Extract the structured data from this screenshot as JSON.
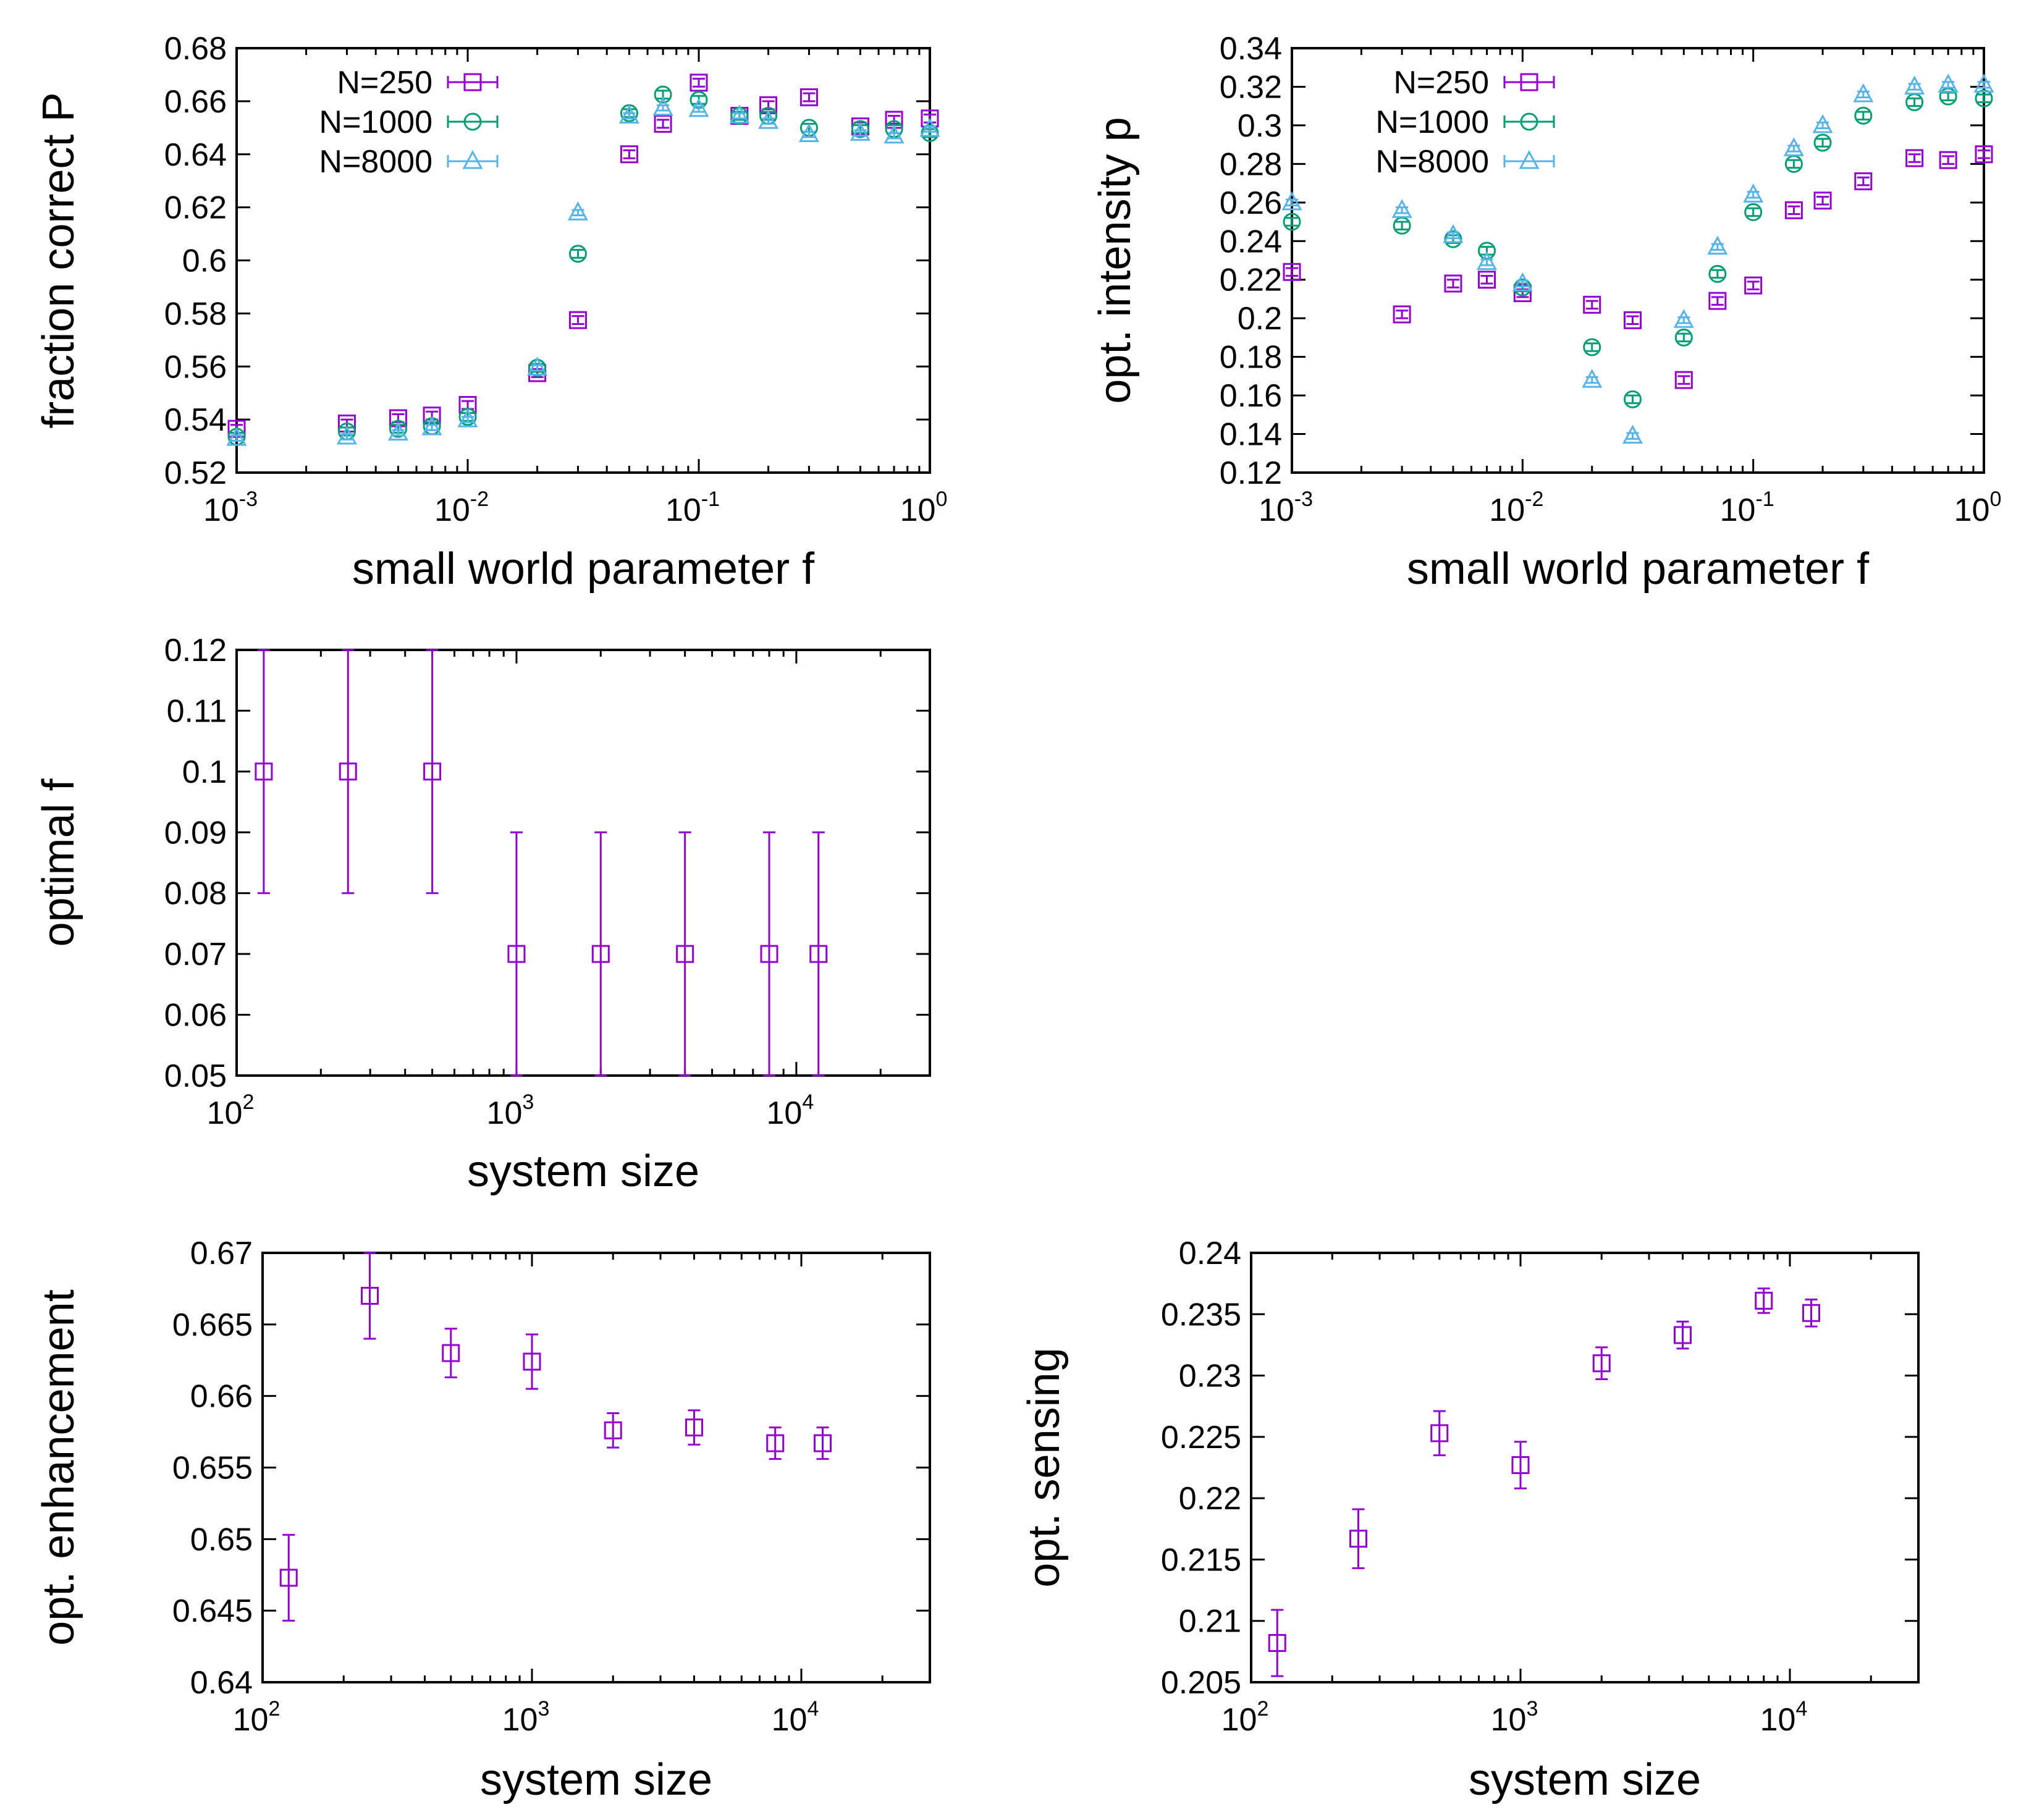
{
  "colors": {
    "purple": "#9400d3",
    "green": "#009e73",
    "blue": "#56b4e9",
    "axis": "#000000"
  },
  "chart_data": [
    {
      "id": "p1",
      "type": "scatter",
      "xscale": "log",
      "xlim": [
        0.001,
        1
      ],
      "ylim": [
        0.52,
        0.68
      ],
      "xticks": [
        {
          "v": 0.001,
          "base": "10",
          "exp": "-3"
        },
        {
          "v": 0.01,
          "base": "10",
          "exp": "-2"
        },
        {
          "v": 0.1,
          "base": "10",
          "exp": "-1"
        },
        {
          "v": 1,
          "base": "10",
          "exp": "0"
        }
      ],
      "yticks": [
        0.52,
        0.54,
        0.56,
        0.58,
        0.6,
        0.62,
        0.64,
        0.66,
        0.68
      ],
      "ytick_labels": [
        "0.52",
        "0.54",
        "0.56",
        "0.58",
        "0.6",
        "0.62",
        "0.64",
        "0.66",
        "0.68"
      ],
      "xlabel": "small world parameter f",
      "ylabel": "fraction correct P",
      "legend": "top-left",
      "series": [
        {
          "name": "N=250",
          "marker": "square",
          "color": "#9400d3",
          "x": [
            0.001,
            0.003,
            0.005,
            0.007,
            0.01,
            0.02,
            0.03,
            0.05,
            0.07,
            0.1,
            0.15,
            0.2,
            0.3,
            0.5,
            0.7,
            1.0
          ],
          "y": [
            0.5365,
            0.5385,
            0.5405,
            0.5415,
            0.5455,
            0.5575,
            0.5775,
            0.64,
            0.6515,
            0.667,
            0.6545,
            0.6585,
            0.6615,
            0.6505,
            0.653,
            0.6535
          ],
          "err": [
            0.0015,
            0.0015,
            0.0015,
            0.0015,
            0.0015,
            0.0015,
            0.0015,
            0.0015,
            0.0015,
            0.0015,
            0.0015,
            0.0015,
            0.0015,
            0.0015,
            0.0015,
            0.0015
          ]
        },
        {
          "name": "N=1000",
          "marker": "circle",
          "color": "#009e73",
          "x": [
            0.001,
            0.003,
            0.005,
            0.007,
            0.01,
            0.02,
            0.03,
            0.05,
            0.07,
            0.1,
            0.15,
            0.2,
            0.3,
            0.5,
            0.7,
            1.0
          ],
          "y": [
            0.5335,
            0.5355,
            0.5365,
            0.5375,
            0.541,
            0.5595,
            0.6025,
            0.6555,
            0.6625,
            0.6605,
            0.6545,
            0.6545,
            0.65,
            0.6495,
            0.6495,
            0.648
          ],
          "err": [
            0.0015,
            0.0015,
            0.0015,
            0.0015,
            0.0015,
            0.0015,
            0.0015,
            0.0015,
            0.0015,
            0.0015,
            0.0015,
            0.0015,
            0.0015,
            0.0015,
            0.0015,
            0.0015
          ]
        },
        {
          "name": "N=8000",
          "marker": "triangle",
          "color": "#56b4e9",
          "x": [
            0.001,
            0.003,
            0.005,
            0.007,
            0.01,
            0.02,
            0.03,
            0.05,
            0.07,
            0.1,
            0.15,
            0.2,
            0.3,
            0.5,
            0.7,
            1.0
          ],
          "y": [
            0.533,
            0.5335,
            0.535,
            0.537,
            0.54,
            0.5595,
            0.618,
            0.6545,
            0.6575,
            0.657,
            0.6545,
            0.6525,
            0.6475,
            0.648,
            0.647,
            0.6495
          ],
          "err": [
            0.001,
            0.001,
            0.001,
            0.001,
            0.001,
            0.001,
            0.001,
            0.001,
            0.001,
            0.001,
            0.001,
            0.001,
            0.001,
            0.001,
            0.001,
            0.001
          ]
        }
      ]
    },
    {
      "id": "p2",
      "type": "scatter",
      "xscale": "log",
      "xlim": [
        0.001,
        1
      ],
      "ylim": [
        0.12,
        0.34
      ],
      "xticks": [
        {
          "v": 0.001,
          "base": "10",
          "exp": "-3"
        },
        {
          "v": 0.01,
          "base": "10",
          "exp": "-2"
        },
        {
          "v": 0.1,
          "base": "10",
          "exp": "-1"
        },
        {
          "v": 1,
          "base": "10",
          "exp": "0"
        }
      ],
      "yticks": [
        0.12,
        0.14,
        0.16,
        0.18,
        0.2,
        0.22,
        0.24,
        0.26,
        0.28,
        0.3,
        0.32,
        0.34
      ],
      "ytick_labels": [
        "0.12",
        "0.14",
        "0.16",
        "0.18",
        "0.2",
        "0.22",
        "0.24",
        "0.26",
        "0.28",
        "0.3",
        "0.32",
        "0.34"
      ],
      "xlabel": "small world parameter f",
      "ylabel": "opt. intensity p",
      "legend": "top-left",
      "series": [
        {
          "name": "N=250",
          "marker": "square",
          "color": "#9400d3",
          "x": [
            0.001,
            0.003,
            0.005,
            0.007,
            0.01,
            0.02,
            0.03,
            0.05,
            0.07,
            0.1,
            0.15,
            0.2,
            0.3,
            0.5,
            0.7,
            1.0
          ],
          "y": [
            0.224,
            0.202,
            0.218,
            0.22,
            0.213,
            0.207,
            0.199,
            0.168,
            0.209,
            0.217,
            0.256,
            0.261,
            0.271,
            0.283,
            0.282,
            0.285
          ],
          "err": [
            0.002,
            0.002,
            0.002,
            0.002,
            0.002,
            0.002,
            0.002,
            0.002,
            0.002,
            0.002,
            0.002,
            0.002,
            0.002,
            0.002,
            0.002,
            0.002
          ]
        },
        {
          "name": "N=1000",
          "marker": "circle",
          "color": "#009e73",
          "x": [
            0.001,
            0.003,
            0.005,
            0.007,
            0.01,
            0.02,
            0.03,
            0.05,
            0.07,
            0.1,
            0.15,
            0.2,
            0.3,
            0.5,
            0.7,
            1.0
          ],
          "y": [
            0.25,
            0.248,
            0.241,
            0.235,
            0.216,
            0.185,
            0.158,
            0.19,
            0.223,
            0.255,
            0.28,
            0.291,
            0.305,
            0.312,
            0.315,
            0.314
          ],
          "err": [
            0.002,
            0.002,
            0.002,
            0.002,
            0.002,
            0.002,
            0.002,
            0.002,
            0.002,
            0.002,
            0.002,
            0.002,
            0.002,
            0.002,
            0.002,
            0.002
          ]
        },
        {
          "name": "N=8000",
          "marker": "triangle",
          "color": "#56b4e9",
          "x": [
            0.001,
            0.003,
            0.005,
            0.007,
            0.01,
            0.02,
            0.03,
            0.05,
            0.07,
            0.1,
            0.15,
            0.2,
            0.3,
            0.5,
            0.7,
            1.0
          ],
          "y": [
            0.26,
            0.256,
            0.243,
            0.229,
            0.218,
            0.168,
            0.139,
            0.199,
            0.237,
            0.264,
            0.288,
            0.3,
            0.316,
            0.32,
            0.321,
            0.321
          ],
          "err": [
            0.0015,
            0.0015,
            0.0015,
            0.0015,
            0.0015,
            0.0015,
            0.0015,
            0.0015,
            0.0015,
            0.0015,
            0.0015,
            0.0015,
            0.0015,
            0.0015,
            0.0015,
            0.0015
          ]
        }
      ]
    },
    {
      "id": "p3",
      "type": "scatter",
      "xscale": "log",
      "xlim": [
        100,
        30000
      ],
      "ylim": [
        0.05,
        0.12
      ],
      "xticks": [
        {
          "v": 100,
          "base": "10",
          "exp": "2"
        },
        {
          "v": 1000,
          "base": "10",
          "exp": "3"
        },
        {
          "v": 10000,
          "base": "10",
          "exp": "4"
        }
      ],
      "yticks": [
        0.05,
        0.06,
        0.07,
        0.08,
        0.09,
        0.1,
        0.11,
        0.12
      ],
      "ytick_labels": [
        "0.05",
        "0.06",
        "0.07",
        "0.08",
        "0.09",
        "0.1",
        "0.11",
        "0.12"
      ],
      "xlabel": "system size",
      "ylabel": "optimal f",
      "series": [
        {
          "name": "optimal f",
          "marker": "square",
          "color": "#9400d3",
          "x": [
            125,
            250,
            500,
            1000,
            2000,
            4000,
            8000,
            12000
          ],
          "y": [
            0.1,
            0.1,
            0.1,
            0.07,
            0.07,
            0.07,
            0.07,
            0.07
          ],
          "lo": [
            0.08,
            0.08,
            0.08,
            0.05,
            0.05,
            0.05,
            0.05,
            0.05
          ],
          "hi": [
            0.12,
            0.12,
            0.12,
            0.09,
            0.09,
            0.09,
            0.09,
            0.09
          ]
        }
      ]
    },
    {
      "id": "p4",
      "type": "scatter",
      "xscale": "log",
      "xlim": [
        100,
        30000
      ],
      "ylim": [
        0.64,
        0.67
      ],
      "xticks": [
        {
          "v": 100,
          "base": "10",
          "exp": "2"
        },
        {
          "v": 1000,
          "base": "10",
          "exp": "3"
        },
        {
          "v": 10000,
          "base": "10",
          "exp": "4"
        }
      ],
      "yticks": [
        0.64,
        0.645,
        0.65,
        0.655,
        0.66,
        0.665,
        0.67
      ],
      "ytick_labels": [
        "0.64",
        "0.645",
        "0.65",
        "0.655",
        "0.66",
        "0.665",
        "0.67"
      ],
      "xlabel": "system size",
      "ylabel": "opt. enhancement",
      "series": [
        {
          "name": "opt. enhancement",
          "marker": "square",
          "color": "#9400d3",
          "x": [
            125,
            250,
            500,
            1000,
            2000,
            4000,
            8000,
            12000
          ],
          "y": [
            0.6473,
            0.667,
            0.663,
            0.6624,
            0.6576,
            0.6578,
            0.6567,
            0.6567
          ],
          "err": [
            0.003,
            0.003,
            0.0017,
            0.0019,
            0.0012,
            0.0012,
            0.0011,
            0.0011
          ]
        }
      ]
    },
    {
      "id": "p5",
      "type": "scatter",
      "xscale": "log",
      "xlim": [
        100,
        30000
      ],
      "ylim": [
        0.205,
        0.24
      ],
      "xticks": [
        {
          "v": 100,
          "base": "10",
          "exp": "2"
        },
        {
          "v": 1000,
          "base": "10",
          "exp": "3"
        },
        {
          "v": 10000,
          "base": "10",
          "exp": "4"
        }
      ],
      "yticks": [
        0.205,
        0.21,
        0.215,
        0.22,
        0.225,
        0.23,
        0.235,
        0.24
      ],
      "ytick_labels": [
        "0.205",
        "0.21",
        "0.215",
        "0.22",
        "0.225",
        "0.23",
        "0.235",
        "0.24"
      ],
      "xlabel": "system size",
      "ylabel": "opt. sensing",
      "series": [
        {
          "name": "opt. sensing",
          "marker": "square",
          "color": "#9400d3",
          "x": [
            125,
            250,
            500,
            1000,
            2000,
            4000,
            8000,
            12000
          ],
          "y": [
            0.2082,
            0.2167,
            0.2253,
            0.2227,
            0.231,
            0.2333,
            0.2361,
            0.2351
          ],
          "err": [
            0.0027,
            0.0024,
            0.0018,
            0.0019,
            0.0013,
            0.0011,
            0.001,
            0.0011
          ]
        }
      ]
    }
  ]
}
